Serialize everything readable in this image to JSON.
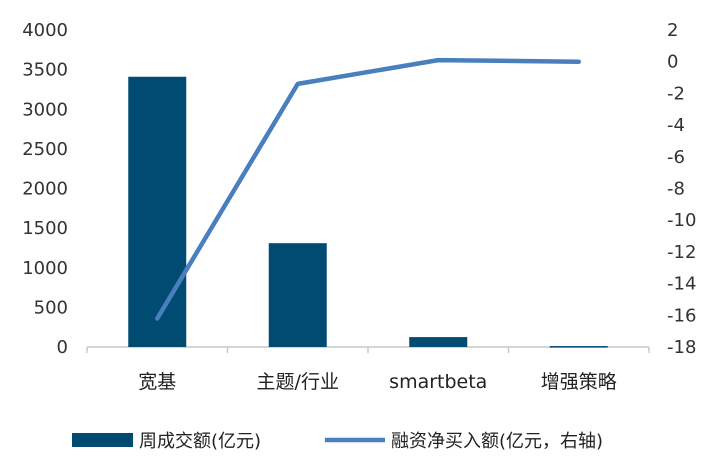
{
  "chart_data": {
    "type": "bar+line",
    "categories": [
      "宽基",
      "主题/行业",
      "smartbeta",
      "增强策略"
    ],
    "series": [
      {
        "name": "周成交额(亿元)",
        "type": "bar",
        "axis": "left",
        "color": "#004b72",
        "values": [
          3410,
          1310,
          125,
          12
        ]
      },
      {
        "name": "融资净买入额(亿元，右轴)",
        "type": "line",
        "axis": "right",
        "color": "#4a7fbd",
        "values": [
          -16.2,
          -1.4,
          0.1,
          0.0
        ]
      }
    ],
    "y_left": {
      "ylim": [
        0,
        4000
      ],
      "ticks": [
        "4000",
        "3500",
        "3000",
        "2500",
        "2000",
        "1500",
        "1000",
        "500",
        "0"
      ]
    },
    "y_right": {
      "ylim": [
        -18,
        2
      ],
      "ticks": [
        "2",
        "0",
        "-2",
        "-4",
        "-6",
        "-8",
        "-10",
        "-12",
        "-14",
        "-16",
        "-18"
      ]
    },
    "legend": {
      "placement": "bottom"
    },
    "grid": false
  }
}
